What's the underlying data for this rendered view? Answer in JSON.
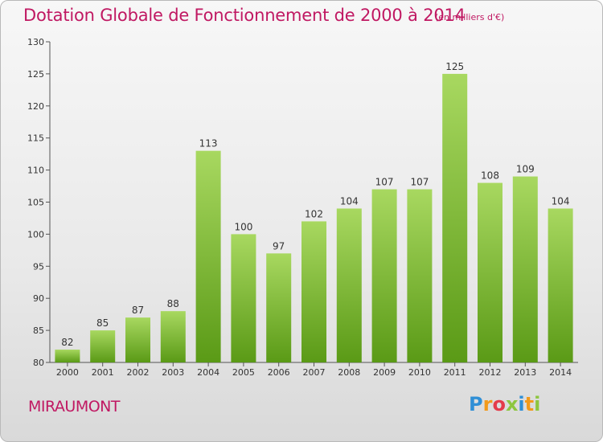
{
  "header": {
    "title": "Dotation Globale de Fonctionnement de 2000 à 2014",
    "unit_note": "(en milliers d'€)"
  },
  "footer": {
    "commune": "MIRAUMONT",
    "logo": [
      "P",
      "r",
      "o",
      "x",
      "i",
      "t",
      "i"
    ]
  },
  "colors": {
    "title": "#c01862",
    "bar_light": "#a3d45a",
    "bar_dark": "#5a9a16",
    "axis": "#555555"
  },
  "chart_data": {
    "type": "bar",
    "title": "Dotation Globale de Fonctionnement de 2000 à 2014",
    "subtitle": "(en milliers d'€)",
    "categories": [
      "2000",
      "2001",
      "2002",
      "2003",
      "2004",
      "2005",
      "2006",
      "2007",
      "2008",
      "2009",
      "2010",
      "2011",
      "2012",
      "2013",
      "2014"
    ],
    "values": [
      82,
      85,
      87,
      88,
      113,
      100,
      97,
      102,
      104,
      107,
      107,
      125,
      108,
      109,
      104
    ],
    "ylim": [
      80,
      130
    ],
    "yticks": [
      80,
      85,
      90,
      95,
      100,
      105,
      110,
      115,
      120,
      125,
      130
    ],
    "grid": false,
    "legend": "none"
  }
}
